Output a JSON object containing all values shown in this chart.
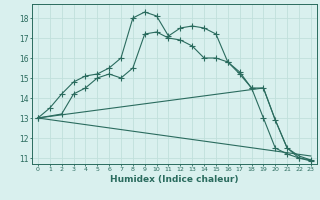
{
  "xlabel": "Humidex (Indice chaleur)",
  "xlim": [
    -0.5,
    23.5
  ],
  "ylim": [
    10.7,
    18.7
  ],
  "yticks": [
    11,
    12,
    13,
    14,
    15,
    16,
    17,
    18
  ],
  "xticks": [
    0,
    1,
    2,
    3,
    4,
    5,
    6,
    7,
    8,
    9,
    10,
    11,
    12,
    13,
    14,
    15,
    16,
    17,
    18,
    19,
    20,
    21,
    22,
    23
  ],
  "bg_color": "#d9f0ee",
  "line_color": "#2a6b5e",
  "grid_color": "#c0e0dc",
  "series1": {
    "x": [
      0,
      1,
      2,
      3,
      4,
      5,
      6,
      7,
      8,
      9,
      10,
      11,
      12,
      13,
      14,
      15,
      16,
      17,
      18,
      19,
      20,
      21,
      22,
      23
    ],
    "y": [
      13.0,
      13.5,
      14.2,
      14.8,
      15.1,
      15.2,
      15.5,
      16.0,
      18.0,
      18.3,
      18.1,
      17.1,
      17.5,
      17.6,
      17.5,
      17.2,
      15.8,
      15.3,
      14.5,
      13.0,
      11.5,
      11.2,
      11.0,
      10.9
    ]
  },
  "series2": {
    "x": [
      0,
      2,
      3,
      4,
      5,
      6,
      7,
      8,
      9,
      10,
      11,
      12,
      13,
      14,
      15,
      16,
      17,
      18,
      19,
      20,
      21,
      22,
      23
    ],
    "y": [
      13.0,
      13.2,
      14.2,
      14.5,
      15.0,
      15.2,
      15.0,
      15.5,
      17.2,
      17.3,
      17.0,
      16.9,
      16.6,
      16.0,
      16.0,
      15.8,
      15.2,
      14.5,
      14.5,
      12.9,
      11.5,
      11.0,
      10.85
    ]
  },
  "series3": {
    "x": [
      0,
      19,
      20,
      21,
      22,
      23
    ],
    "y": [
      13.0,
      14.5,
      12.9,
      11.5,
      11.1,
      10.9
    ]
  },
  "series4": {
    "x": [
      0,
      23
    ],
    "y": [
      13.0,
      11.1
    ]
  }
}
